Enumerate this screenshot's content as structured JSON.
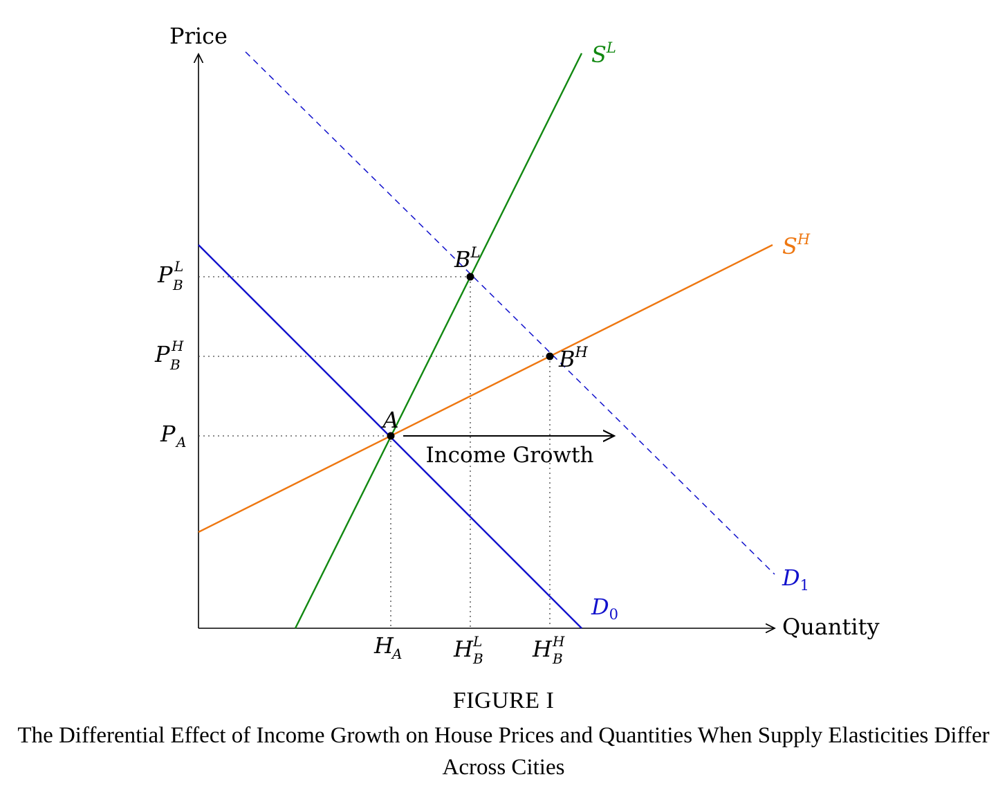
{
  "axes": {
    "y_label": "Price",
    "x_label": "Quantity"
  },
  "curves": {
    "supply_low": {
      "base": "S",
      "sup": "L",
      "color": "#118811"
    },
    "supply_high": {
      "base": "S",
      "sup": "H",
      "color": "#ee7711"
    },
    "demand_initial": {
      "base": "D",
      "sub": "0",
      "color": "#1111cc"
    },
    "demand_shifted": {
      "base": "D",
      "sub": "1",
      "color": "#1111cc",
      "style": "dashed"
    }
  },
  "points": {
    "a": "A",
    "b_low": {
      "base": "B",
      "sup": "L"
    },
    "b_high": {
      "base": "B",
      "sup": "H"
    }
  },
  "y_ticks": {
    "p_b_low": {
      "base": "P",
      "sub": "B",
      "sup": "L"
    },
    "p_b_high": {
      "base": "P",
      "sub": "B",
      "sup": "H"
    },
    "p_a": {
      "base": "P",
      "sub": "A"
    }
  },
  "x_ticks": {
    "h_a": {
      "base": "H",
      "sub": "A"
    },
    "h_b_low": {
      "base": "H",
      "sub": "B",
      "sup": "L"
    },
    "h_b_high": {
      "base": "H",
      "sub": "B",
      "sup": "H"
    }
  },
  "shift_arrow_label": "Income Growth",
  "caption": {
    "label": "FIGURE I",
    "title": "The Differential Effect of Income Growth on House Prices and Quantities When Supply Elasticities Differ Across Cities"
  }
}
